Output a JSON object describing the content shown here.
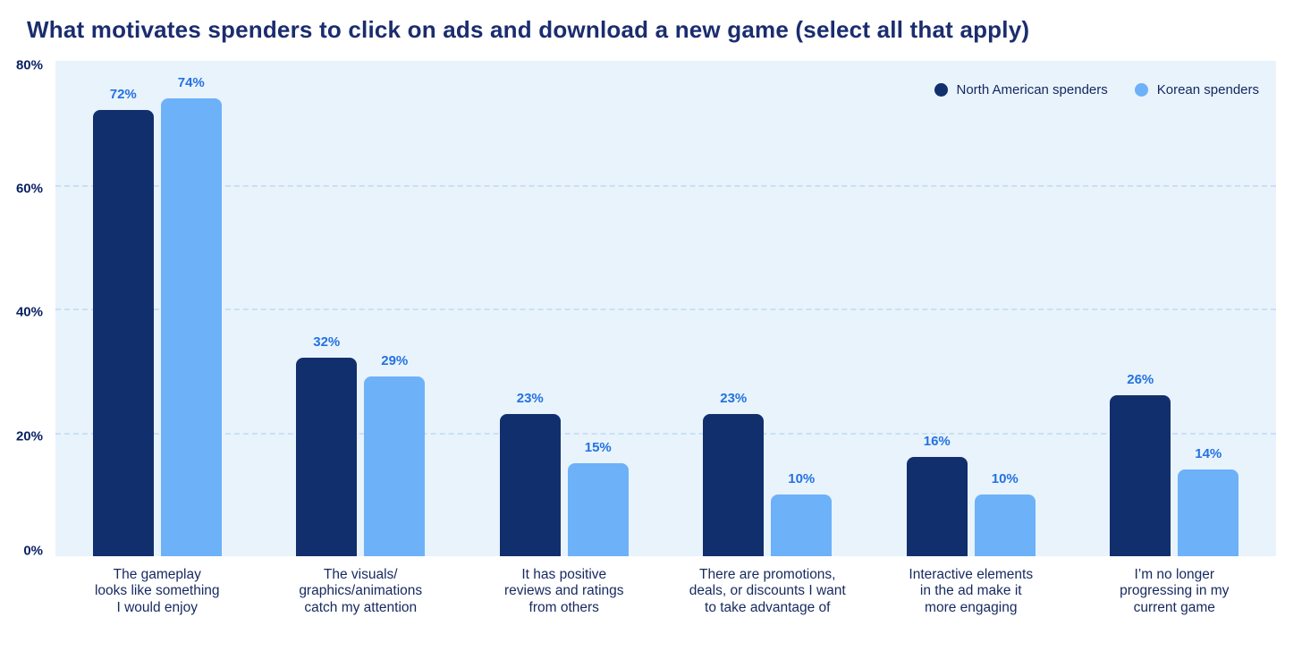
{
  "title": "What motivates spenders to click on ads and download a new game (select all that apply)",
  "colors": {
    "page_bg": "#ffffff",
    "title_text": "#1b2d6e",
    "panel_bg": "#e9f3fc",
    "gridline": "#c9e0f4",
    "axis_tick_text": "#0a2163",
    "category_text": "#16295f",
    "value_label_text": "#2372e2",
    "north_american_bar": "#122f6d",
    "korean_bar": "#6db1f9"
  },
  "legend": {
    "items": [
      {
        "label": "North American spenders",
        "color": "#122f6d"
      },
      {
        "label": "Korean spenders",
        "color": "#6db1f9"
      }
    ]
  },
  "chart_data": {
    "type": "bar",
    "title": "What motivates spenders to click on ads and download a new game (select all that apply)",
    "categories": [
      "The gameplay looks like something I would enjoy",
      "The visuals/graphics/animations catch my attention",
      "It has positive reviews and ratings from others",
      "There are promotions, deals, or discounts I want to take advantage of",
      "Interactive elements in the ad make it more engaging",
      "I’m no longer progressing in my current game"
    ],
    "category_lines": [
      [
        "The gameplay",
        "looks like something",
        "I would enjoy"
      ],
      [
        "The visuals/",
        "graphics/animations",
        "catch my attention"
      ],
      [
        "It has positive",
        "reviews and ratings",
        "from others"
      ],
      [
        "There are promotions,",
        "deals, or discounts I want",
        "to take advantage of"
      ],
      [
        "Interactive elements",
        "in the ad make it",
        "more engaging"
      ],
      [
        "I’m no longer",
        "progressing in my",
        "current game"
      ]
    ],
    "series": [
      {
        "name": "North American spenders",
        "color": "#122f6d",
        "values": [
          72,
          32,
          23,
          23,
          16,
          26
        ]
      },
      {
        "name": "Korean spenders",
        "color": "#6db1f9",
        "values": [
          74,
          29,
          15,
          10,
          10,
          14
        ]
      }
    ],
    "xlabel": "",
    "ylabel": "",
    "ylim": [
      0,
      80
    ],
    "yticks": [
      0,
      20,
      40,
      60,
      80
    ],
    "ytick_suffix": "%",
    "value_label_suffix": "%",
    "grid": "horizontal-dashed",
    "gridline_ticks": [
      20,
      40,
      60
    ],
    "legend_position": "top-right-inside"
  }
}
